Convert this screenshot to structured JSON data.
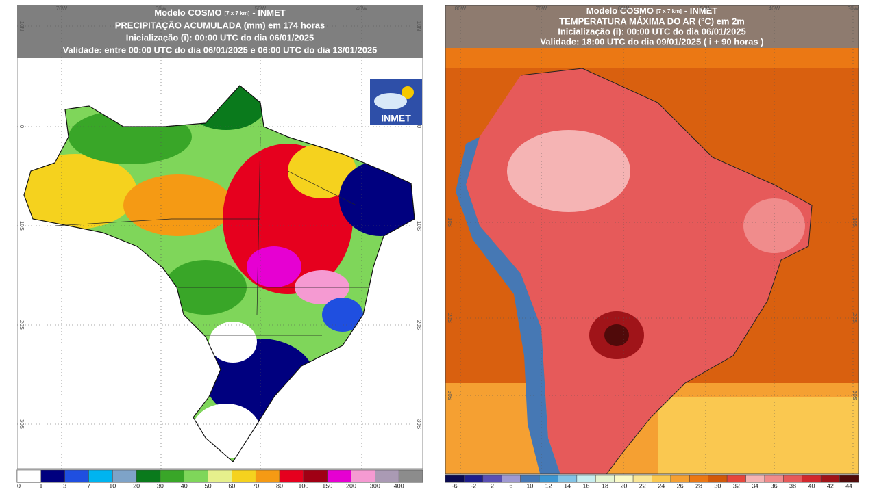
{
  "left_map": {
    "title": {
      "model": "Modelo COSMO",
      "resolution": "[7 x 7 km]",
      "agency": "- INMET"
    },
    "subtitle_lines": [
      "PRECIPITAÇÃO ACUMULADA (mm) em 174 horas",
      "Inicialização (i): 00:00 UTC do dia 06/01/2025",
      "Validade: entre 00:00 UTC do dia 06/01/2025 e 06:00 UTC do dia 13/01/2025"
    ],
    "lon_labels": [
      "70W",
      "60W",
      "50W",
      "40W"
    ],
    "lat_labels": [
      "10N",
      "0",
      "10S",
      "20S",
      "30S"
    ],
    "logo": "INMET",
    "colorbar": {
      "labels": [
        0,
        1,
        3,
        7,
        10,
        20,
        30,
        40,
        50,
        60,
        70,
        80,
        100,
        150,
        200,
        300,
        400
      ],
      "colors": [
        "#ffffff",
        "#00007f",
        "#1f4fe0",
        "#00b4f0",
        "#7ea3c8",
        "#0a7a1c",
        "#39a628",
        "#7fd65a",
        "#e6f08c",
        "#f5d21e",
        "#f59a14",
        "#e6001e",
        "#a00014",
        "#e600d2",
        "#f59ad2",
        "#aa9ab4",
        "#8c8c8c"
      ]
    }
  },
  "right_map": {
    "title": {
      "model": "Modelo COSMO",
      "resolution": "[7 x 7 km]",
      "agency": "- INMET"
    },
    "subtitle_lines": [
      "TEMPERATURA MÁXIMA DO AR (°C) em 2m",
      "Inicialização (i): 00:00 UTC do dia 06/01/2025",
      "Validade: 18:00 UTC do dia 09/01/2025 ( i + 90 horas )"
    ],
    "lon_labels": [
      "80W",
      "70W",
      "60W",
      "50W",
      "40W",
      "30W"
    ],
    "lat_labels": [
      "10S",
      "20S",
      "30S"
    ],
    "colorbar": {
      "labels": [
        -6,
        -2,
        2,
        6,
        10,
        12,
        14,
        16,
        18,
        20,
        22,
        24,
        26,
        28,
        30,
        32,
        34,
        36,
        38,
        40,
        42,
        44
      ],
      "colors": [
        "#0a0a50",
        "#1e1e8c",
        "#5a50b4",
        "#a09ad2",
        "#4678b4",
        "#3c96d2",
        "#82c3e6",
        "#c8eef0",
        "#e6f5d2",
        "#fafac8",
        "#fae696",
        "#fac850",
        "#f5a032",
        "#eb7814",
        "#d25a0a",
        "#e6463c",
        "#f5b4b4",
        "#f08c8c",
        "#e65a5a",
        "#d2282d",
        "#a01419",
        "#500a0a"
      ]
    }
  }
}
